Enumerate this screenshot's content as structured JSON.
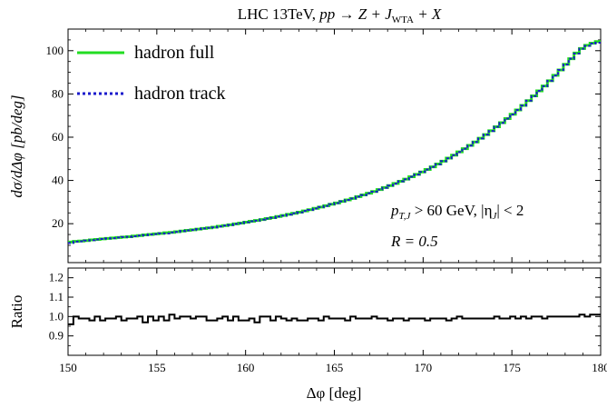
{
  "chart_data": [
    {
      "type": "line",
      "panel": "main",
      "title": "LHC 13TeV,  pp → Z + J_WTA + X",
      "title_parts": {
        "prefix": "LHC 13TeV,  ",
        "process": "pp → Z + J",
        "sub": "WTA",
        "suffix": " + X"
      },
      "ylabel": "dσ/dΔφ [pb/deg]",
      "xlabel": "",
      "xlim": [
        150,
        180
      ],
      "ylim": [
        2,
        110
      ],
      "yticks": [
        "20",
        "40",
        "60",
        "80",
        "100"
      ],
      "legend_position": "top-left",
      "annotations": [
        "p_T,J > 60 GeV,  |η_J| < 2",
        "R = 0.5"
      ],
      "annotation_parts": {
        "line1_a": "p",
        "line1_sub": "T,J",
        "line1_b": " > 60 GeV,  |η",
        "line1_sub2": "J",
        "line1_c": "| < 2",
        "line2": "R = 0.5"
      },
      "bin_edges_start": 150,
      "bin_width": 0.3,
      "series": [
        {
          "name": "hadron full",
          "color": "#22dd22",
          "style": "solid",
          "values": [
            11.5,
            11.8,
            12.0,
            12.2,
            12.5,
            12.7,
            13.0,
            13.2,
            13.4,
            13.6,
            13.8,
            14.0,
            14.3,
            14.5,
            14.8,
            15.0,
            15.3,
            15.5,
            15.8,
            16.0,
            16.3,
            16.6,
            16.9,
            17.2,
            17.5,
            17.8,
            18.1,
            18.4,
            18.8,
            19.1,
            19.5,
            19.9,
            20.3,
            20.7,
            21.1,
            21.5,
            21.9,
            22.4,
            22.8,
            23.3,
            23.8,
            24.3,
            24.8,
            25.3,
            25.9,
            26.5,
            27.1,
            27.7,
            28.3,
            29.0,
            29.6,
            30.3,
            31.0,
            31.7,
            32.5,
            33.3,
            34.1,
            34.9,
            35.8,
            36.7,
            37.6,
            38.6,
            39.6,
            40.6,
            41.7,
            42.8,
            43.9,
            45.1,
            46.3,
            47.6,
            48.9,
            50.3,
            51.7,
            53.2,
            54.7,
            56.2,
            57.8,
            59.5,
            61.2,
            63.0,
            64.8,
            66.7,
            68.6,
            70.6,
            72.6,
            74.7,
            76.9,
            79.1,
            81.4,
            83.7,
            86.1,
            88.6,
            91.1,
            93.7,
            96.3,
            98.9,
            101.0,
            102.5,
            103.5,
            104.2
          ]
        },
        {
          "name": "hadron track",
          "color": "#1a1acc",
          "style": "dotted",
          "values": [
            11.1,
            11.7,
            11.8,
            12.2,
            12.4,
            12.7,
            12.9,
            13.2,
            13.3,
            13.6,
            13.8,
            13.9,
            14.2,
            14.5,
            14.7,
            15.0,
            15.2,
            15.5,
            15.5,
            16.0,
            16.2,
            16.6,
            16.9,
            17.1,
            17.5,
            17.8,
            18.1,
            18.3,
            18.7,
            19.1,
            19.4,
            19.9,
            20.2,
            20.7,
            21.1,
            21.4,
            21.9,
            22.4,
            22.7,
            23.3,
            23.7,
            24.2,
            24.8,
            25.2,
            25.9,
            26.4,
            27.0,
            27.7,
            28.2,
            29.0,
            29.5,
            30.3,
            31.0,
            31.6,
            32.5,
            33.2,
            34.1,
            34.8,
            35.8,
            36.6,
            37.6,
            38.5,
            39.6,
            40.5,
            41.7,
            42.7,
            43.9,
            45.0,
            46.3,
            47.5,
            48.9,
            50.2,
            51.7,
            53.1,
            54.7,
            56.1,
            57.8,
            59.4,
            61.2,
            62.9,
            64.8,
            66.6,
            68.6,
            70.5,
            72.6,
            74.6,
            76.9,
            79.0,
            81.4,
            83.6,
            86.1,
            88.5,
            91.1,
            93.6,
            96.3,
            98.7,
            100.9,
            102.2,
            103.3,
            103.7
          ]
        }
      ]
    },
    {
      "type": "line",
      "panel": "ratio",
      "xlabel": "Δφ [deg]",
      "ylabel": "Ratio",
      "xlim": [
        150,
        180
      ],
      "ylim": [
        0.8,
        1.25
      ],
      "xticks": [
        "150",
        "155",
        "160",
        "165",
        "170",
        "175",
        "180"
      ],
      "yticks": [
        "0.9",
        "1.0",
        "1.1",
        "1.2"
      ],
      "bin_edges_start": 150,
      "bin_width": 0.3,
      "series": [
        {
          "name": "",
          "color": "#000000",
          "style": "solid",
          "values": [
            0.96,
            1.0,
            0.99,
            0.99,
            0.98,
            1.0,
            0.98,
            0.99,
            0.99,
            1.0,
            0.98,
            0.99,
            0.99,
            1.0,
            0.97,
            1.0,
            0.98,
            1.0,
            0.98,
            1.01,
            0.99,
            1.0,
            1.0,
            0.99,
            1.0,
            1.0,
            0.98,
            0.98,
            0.99,
            1.0,
            0.98,
            1.0,
            0.98,
            0.98,
            0.99,
            0.97,
            1.0,
            1.0,
            0.98,
            1.0,
            0.99,
            0.98,
            0.99,
            0.98,
            0.98,
            0.99,
            0.99,
            0.98,
            1.0,
            0.99,
            0.99,
            0.99,
            0.98,
            1.0,
            0.99,
            0.99,
            0.99,
            1.0,
            0.99,
            0.99,
            0.98,
            0.99,
            0.99,
            0.98,
            0.99,
            0.99,
            0.99,
            0.98,
            0.99,
            0.99,
            0.99,
            0.98,
            0.99,
            1.0,
            0.99,
            0.99,
            0.99,
            0.99,
            0.99,
            0.99,
            1.0,
            0.99,
            0.99,
            1.0,
            0.99,
            1.0,
            0.99,
            1.0,
            1.0,
            0.99,
            1.0,
            1.0,
            1.0,
            1.0,
            1.0,
            1.0,
            1.01,
            1.0,
            1.01,
            1.01
          ]
        }
      ]
    }
  ]
}
